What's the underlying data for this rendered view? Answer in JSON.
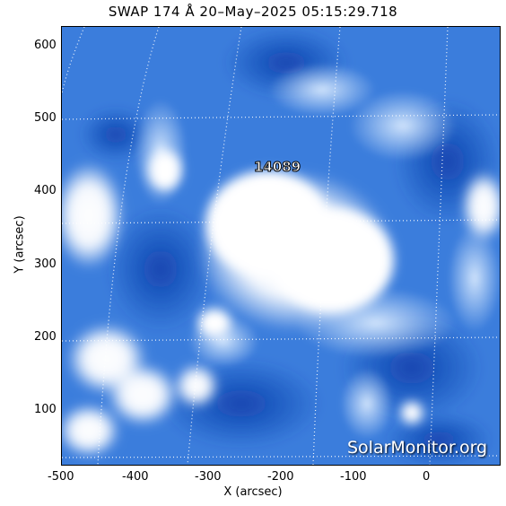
{
  "title": "SWAP 174 Å 20–May–2025 05:15:29.718",
  "axes": {
    "xlabel": "X (arcsec)",
    "ylabel": "Y (arcsec)",
    "xticks": [
      "-500",
      "-400",
      "-300",
      "-200",
      "-100",
      "0"
    ],
    "yticks": [
      "600",
      "500",
      "400",
      "300",
      "200",
      "100"
    ]
  },
  "region": {
    "label": "14089"
  },
  "watermark": "SolarMonitor.org",
  "colors": {
    "base_blue": "#2d6fd6",
    "dark_blue": "#0b3aa8",
    "bright": "#ffffff"
  }
}
